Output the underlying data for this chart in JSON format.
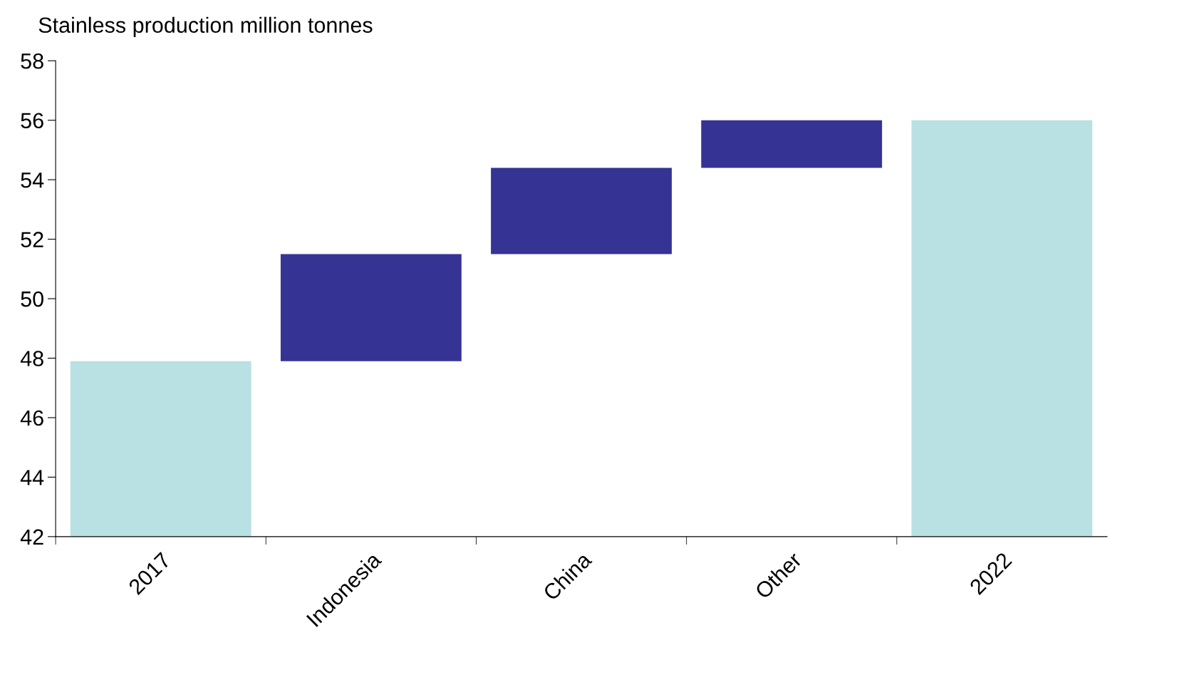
{
  "chart_data": {
    "type": "bar",
    "title": "Stainless production million tonnes",
    "categories": [
      "2017",
      "Indonesia",
      "China",
      "Other",
      "2022"
    ],
    "base": [
      42,
      47.9,
      51.5,
      54.4,
      42
    ],
    "values": [
      5.9,
      3.6,
      2.9,
      1.6,
      14.0
    ],
    "colors": [
      "#b9e0e2",
      "#353495",
      "#353495",
      "#353495",
      "#b9e0e2"
    ],
    "ylim": [
      42,
      58
    ],
    "yticks": [
      42,
      44,
      46,
      48,
      50,
      52,
      54,
      56,
      58
    ],
    "grid": false,
    "legend": false
  }
}
